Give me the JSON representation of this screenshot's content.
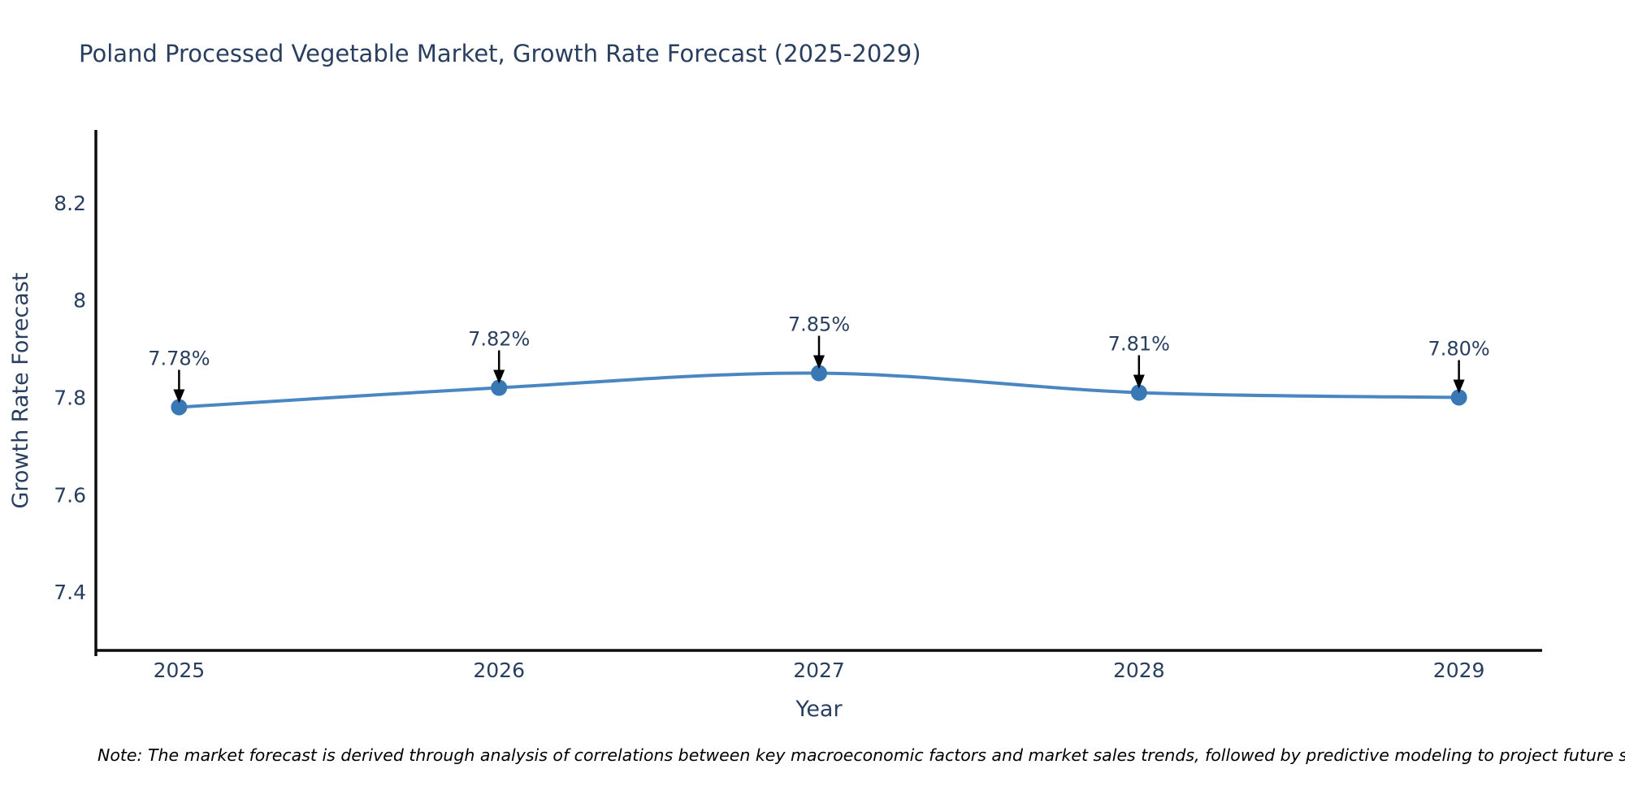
{
  "chart": {
    "title": "Poland Processed Vegetable Market, Growth Rate Forecast (2025-2029)",
    "xlabel": "Year",
    "ylabel": "Growth Rate Forecast"
  },
  "note": "Note: The market forecast is derived through analysis of correlations between key macroeconomic factors and market sales trends, followed by predictive modeling to project future sales",
  "chart_data": {
    "type": "line",
    "title": "Poland Processed Vegetable Market, Growth Rate Forecast (2025-2029)",
    "xlabel": "Year",
    "ylabel": "Growth Rate Forecast",
    "x": [
      2025,
      2026,
      2027,
      2028,
      2029
    ],
    "values": [
      7.78,
      7.82,
      7.85,
      7.81,
      7.8
    ],
    "point_labels": [
      "7.78%",
      "7.82%",
      "7.85%",
      "7.81%",
      "7.80%"
    ],
    "xtick_labels": [
      "2025",
      "2026",
      "2027",
      "2028",
      "2029"
    ],
    "yticks": [
      7.4,
      7.6,
      7.8,
      8.0,
      8.2
    ],
    "ytick_labels": [
      "7.4",
      "7.6",
      "7.8",
      "8",
      "8.2"
    ],
    "xlim": [
      2024.74,
      2029.26
    ],
    "ylim": [
      7.28,
      8.35
    ],
    "grid": false,
    "legend": "none",
    "line_shape": "spline",
    "annotations_arrow": "down-black",
    "colors": {
      "line": "#4a86c2",
      "marker": "#3878b4",
      "axis": "#0d0d0d",
      "text": "#2a3f5f",
      "arrow": "#000000"
    }
  }
}
